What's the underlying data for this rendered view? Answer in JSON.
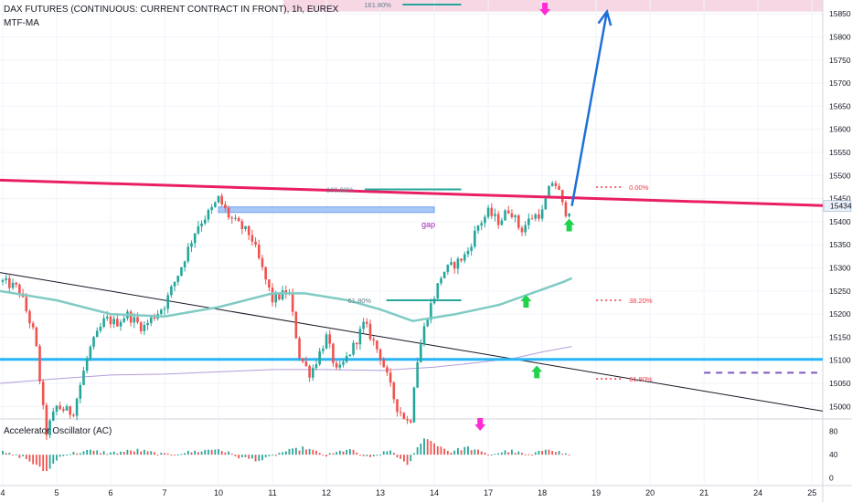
{
  "header": {
    "title": "DAX FUTURES (CONTINUOUS: CURRENT CONTRACT IN FRONT), 1h, EUREX",
    "indicator": "MTF-MA",
    "oscillator_title": "Accelerator Oscillator (AC)"
  },
  "colors": {
    "up": "#26a69a",
    "down": "#ef5350",
    "trendline": "#e91e63",
    "support": "#29b6f6",
    "ma_fast": "#80cbc4",
    "ma_slow": "#b39ddb",
    "fib": "#26a69a",
    "target_arrow": "#1e6fd9",
    "zone": "#f8d7e5",
    "signal_up": "#1fd34a",
    "signal_down": "#ff2bd6",
    "price_tag": "#eaf1fb"
  },
  "annotations": {
    "fib_top_label": "161.80%",
    "fib_mid_label": "100.00%",
    "fib_low_label": "61.80%",
    "gap_label": "gap",
    "fib_right_0": "0.00%",
    "fib_right_38": "38.20%",
    "fib_right_61": "61.80%",
    "current_price": "15434"
  },
  "chart_data": [
    {
      "type": "candlestick",
      "title": "DAX FUTURES (CONTINUOUS: CURRENT CONTRACT IN FRONT), 1h, EUREX",
      "x_tick_labels": [
        "4",
        "5",
        "6",
        "7",
        "10",
        "11",
        "12",
        "13",
        "14",
        "17",
        "18",
        "19",
        "20",
        "21",
        "24",
        "25"
      ],
      "x_tick_positions": [
        4,
        5,
        6,
        7,
        8,
        9,
        10,
        11,
        12,
        13,
        14,
        15,
        16,
        17,
        18,
        19
      ],
      "x_range": [
        3.95,
        19.2
      ],
      "y_ticks": [
        15000,
        15050,
        15100,
        15150,
        15200,
        15250,
        15300,
        15350,
        15400,
        15450,
        15500,
        15550,
        15600,
        15650,
        15700,
        15750,
        15800,
        15850
      ],
      "y_range": [
        14975,
        15880
      ],
      "close_path": [
        [
          4.0,
          15270
        ],
        [
          4.3,
          15255
        ],
        [
          4.6,
          15150
        ],
        [
          4.8,
          14940
        ],
        [
          5.0,
          15000
        ],
        [
          5.3,
          14985
        ],
        [
          5.6,
          15120
        ],
        [
          5.9,
          15190
        ],
        [
          6.1,
          15180
        ],
        [
          6.3,
          15200
        ],
        [
          6.6,
          15170
        ],
        [
          7.0,
          15220
        ],
        [
          7.3,
          15300
        ],
        [
          7.6,
          15390
        ],
        [
          7.9,
          15430
        ],
        [
          8.0,
          15450
        ],
        [
          8.2,
          15410
        ],
        [
          8.4,
          15390
        ],
        [
          8.6,
          15370
        ],
        [
          8.8,
          15300
        ],
        [
          9.0,
          15230
        ],
        [
          9.3,
          15250
        ],
        [
          9.5,
          15110
        ],
        [
          9.7,
          15070
        ],
        [
          10.0,
          15150
        ],
        [
          10.2,
          15070
        ],
        [
          10.5,
          15130
        ],
        [
          10.7,
          15180
        ],
        [
          11.0,
          15110
        ],
        [
          11.3,
          15000
        ],
        [
          11.55,
          14960
        ],
        [
          11.65,
          15080
        ],
        [
          11.85,
          15190
        ],
        [
          12.0,
          15240
        ],
        [
          12.15,
          15290
        ],
        [
          12.4,
          15310
        ],
        [
          12.6,
          15330
        ],
        [
          12.8,
          15390
        ],
        [
          13.0,
          15420
        ],
        [
          13.2,
          15400
        ],
        [
          13.4,
          15430
        ],
        [
          13.6,
          15380
        ],
        [
          13.8,
          15410
        ],
        [
          14.0,
          15420
        ],
        [
          14.1,
          15460
        ],
        [
          14.2,
          15490
        ],
        [
          14.3,
          15470
        ],
        [
          14.35,
          15440
        ],
        [
          14.45,
          15420
        ],
        [
          14.55,
          15434
        ]
      ],
      "resistance_trendline": [
        [
          3.95,
          15490
        ],
        [
          19.2,
          15435
        ]
      ],
      "descending_trendline": [
        [
          3.95,
          15290
        ],
        [
          19.2,
          14990
        ]
      ],
      "support_line": 15102,
      "ma_fast": [
        [
          3.95,
          15250
        ],
        [
          5.0,
          15230
        ],
        [
          6.0,
          15200
        ],
        [
          7.0,
          15195
        ],
        [
          8.0,
          15215
        ],
        [
          9.0,
          15245
        ],
        [
          9.6,
          15245
        ],
        [
          10.4,
          15230
        ],
        [
          11.0,
          15210
        ],
        [
          11.6,
          15185
        ],
        [
          12.4,
          15200
        ],
        [
          13.2,
          15220
        ],
        [
          13.8,
          15245
        ],
        [
          14.4,
          15270
        ],
        [
          14.55,
          15278
        ]
      ],
      "ma_slow": [
        [
          3.95,
          15050
        ],
        [
          5.0,
          15060
        ],
        [
          6.0,
          15068
        ],
        [
          7.0,
          15070
        ],
        [
          8.0,
          15075
        ],
        [
          9.0,
          15080
        ],
        [
          10.0,
          15080
        ],
        [
          11.0,
          15078
        ],
        [
          12.0,
          15085
        ],
        [
          12.8,
          15095
        ],
        [
          13.5,
          15105
        ],
        [
          14.0,
          15118
        ],
        [
          14.55,
          15130
        ]
      ],
      "target_zone": [
        15855,
        15880
      ],
      "projection": [
        [
          14.55,
          15434
        ],
        [
          15.2,
          15855
        ]
      ],
      "fib_segments": [
        {
          "label": "161.80%",
          "value": 15870,
          "x": [
            10.7,
            12.5
          ]
        },
        {
          "label": "100.00%",
          "value": 15470,
          "x": [
            10.0,
            12.5
          ]
        },
        {
          "label": "61.80%",
          "value": 15230,
          "x": [
            10.4,
            12.5
          ]
        }
      ],
      "gap_zone": {
        "from": 15420,
        "to": 15432,
        "x": [
          8.0,
          12.0
        ]
      },
      "right_fib_levels": [
        {
          "label": "0.00%",
          "value": 15475
        },
        {
          "label": "38.20%",
          "value": 15230
        },
        {
          "label": "61.80%",
          "value": 15060
        }
      ],
      "dashed_level": 15073,
      "current_price": 15434
    },
    {
      "type": "bar",
      "title": "Accelerator Oscillator (AC)",
      "y_ticks": [
        0,
        40,
        80
      ],
      "y_range": [
        -10,
        100
      ],
      "baseline": 40,
      "profile": [
        [
          3.95,
          45
        ],
        [
          4.4,
          35
        ],
        [
          4.8,
          10
        ],
        [
          5.1,
          40
        ],
        [
          5.6,
          47
        ],
        [
          6.0,
          43
        ],
        [
          6.5,
          48
        ],
        [
          7.0,
          40
        ],
        [
          7.5,
          45
        ],
        [
          8.0,
          50
        ],
        [
          8.4,
          35
        ],
        [
          8.8,
          30
        ],
        [
          9.2,
          45
        ],
        [
          9.6,
          52
        ],
        [
          10.0,
          38
        ],
        [
          10.4,
          50
        ],
        [
          10.8,
          33
        ],
        [
          11.2,
          48
        ],
        [
          11.5,
          20
        ],
        [
          11.8,
          70
        ],
        [
          12.0,
          60
        ],
        [
          12.3,
          45
        ],
        [
          12.6,
          53
        ],
        [
          13.0,
          40
        ],
        [
          13.4,
          47
        ],
        [
          13.8,
          38
        ],
        [
          14.1,
          52
        ],
        [
          14.3,
          45
        ],
        [
          14.55,
          38
        ]
      ]
    }
  ]
}
